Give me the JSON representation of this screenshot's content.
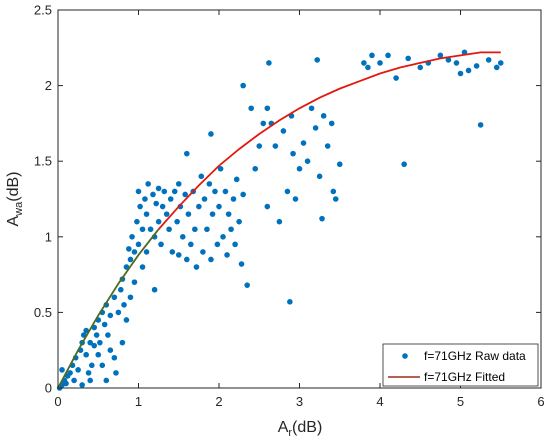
{
  "chart_data": {
    "type": "scatter",
    "title": "",
    "xlabel": {
      "main": "A",
      "sub": "r",
      "unit": "(dB)"
    },
    "ylabel": {
      "main": "A",
      "sub": "wa",
      "unit": "(dB)"
    },
    "xlim": [
      0,
      6
    ],
    "ylim": [
      0,
      2.5
    ],
    "xticks": [
      "0",
      "1",
      "2",
      "3",
      "4",
      "5",
      "6"
    ],
    "yticks": [
      "0",
      "0.5",
      "1",
      "1.5",
      "2",
      "2.5"
    ],
    "grid": false,
    "legend_position": "bottom-right",
    "colors": {
      "raw": "#0072BD",
      "fit": "#E3170D",
      "fit_start": "#4D6B1F"
    },
    "series": [
      {
        "name": "f=71GHz Raw data",
        "kind": "scatter",
        "points": [
          [
            0.02,
            0.0
          ],
          [
            0.05,
            0.02
          ],
          [
            0.08,
            0.05
          ],
          [
            0.1,
            0.03
          ],
          [
            0.12,
            0.08
          ],
          [
            0.15,
            0.1
          ],
          [
            0.05,
            0.12
          ],
          [
            0.18,
            0.15
          ],
          [
            0.2,
            0.05
          ],
          [
            0.22,
            0.2
          ],
          [
            0.25,
            0.12
          ],
          [
            0.28,
            0.25
          ],
          [
            0.3,
            0.3
          ],
          [
            0.3,
            0.02
          ],
          [
            0.32,
            0.35
          ],
          [
            0.35,
            0.22
          ],
          [
            0.35,
            0.38
          ],
          [
            0.38,
            0.1
          ],
          [
            0.4,
            0.05
          ],
          [
            0.4,
            0.3
          ],
          [
            0.42,
            0.15
          ],
          [
            0.45,
            0.28
          ],
          [
            0.45,
            0.4
          ],
          [
            0.48,
            0.35
          ],
          [
            0.5,
            0.45
          ],
          [
            0.5,
            0.22
          ],
          [
            0.52,
            0.3
          ],
          [
            0.55,
            0.5
          ],
          [
            0.55,
            0.15
          ],
          [
            0.58,
            0.42
          ],
          [
            0.6,
            0.55
          ],
          [
            0.6,
            0.05
          ],
          [
            0.62,
            0.35
          ],
          [
            0.65,
            0.48
          ],
          [
            0.65,
            0.25
          ],
          [
            0.7,
            0.6
          ],
          [
            0.7,
            0.2
          ],
          [
            0.72,
            0.1
          ],
          [
            0.75,
            0.5
          ],
          [
            0.78,
            0.65
          ],
          [
            0.8,
            0.3
          ],
          [
            0.8,
            0.72
          ],
          [
            0.82,
            0.55
          ],
          [
            0.85,
            0.8
          ],
          [
            0.85,
            0.45
          ],
          [
            0.88,
            0.92
          ],
          [
            0.9,
            0.85
          ],
          [
            0.9,
            0.6
          ],
          [
            0.92,
            1.0
          ],
          [
            0.95,
            0.9
          ],
          [
            0.95,
            0.7
          ],
          [
            0.98,
            1.1
          ],
          [
            1.0,
            1.3
          ],
          [
            1.0,
            0.95
          ],
          [
            1.02,
            1.2
          ],
          [
            1.05,
            1.05
          ],
          [
            1.05,
            0.8
          ],
          [
            1.08,
            1.25
          ],
          [
            1.1,
            1.15
          ],
          [
            1.1,
            0.9
          ],
          [
            1.12,
            1.35
          ],
          [
            1.15,
            1.05
          ],
          [
            1.18,
            1.28
          ],
          [
            1.2,
            1.0
          ],
          [
            1.2,
            0.65
          ],
          [
            1.22,
            1.22
          ],
          [
            1.25,
            1.32
          ],
          [
            1.25,
            1.1
          ],
          [
            1.28,
            0.95
          ],
          [
            1.3,
            1.2
          ],
          [
            1.32,
            1.3
          ],
          [
            1.35,
            1.15
          ],
          [
            1.38,
            1.05
          ],
          [
            1.4,
            1.25
          ],
          [
            1.42,
            0.9
          ],
          [
            1.45,
            1.3
          ],
          [
            1.48,
            1.1
          ],
          [
            1.5,
            1.35
          ],
          [
            1.5,
            0.88
          ],
          [
            1.52,
            1.2
          ],
          [
            1.55,
            1.0
          ],
          [
            1.58,
            1.28
          ],
          [
            1.6,
            0.85
          ],
          [
            1.6,
            1.55
          ],
          [
            1.62,
            1.15
          ],
          [
            1.65,
            0.95
          ],
          [
            1.68,
            1.3
          ],
          [
            1.7,
            1.05
          ],
          [
            1.72,
            0.8
          ],
          [
            1.75,
            1.2
          ],
          [
            1.78,
            1.4
          ],
          [
            1.8,
            0.9
          ],
          [
            1.82,
            1.25
          ],
          [
            1.85,
            1.05
          ],
          [
            1.88,
            1.35
          ],
          [
            1.9,
            0.85
          ],
          [
            1.9,
            1.68
          ],
          [
            1.92,
            1.15
          ],
          [
            1.95,
            1.3
          ],
          [
            1.98,
            0.95
          ],
          [
            2.0,
            1.2
          ],
          [
            2.02,
            1.45
          ],
          [
            2.05,
            1.0
          ],
          [
            2.08,
            1.3
          ],
          [
            2.1,
            0.88
          ],
          [
            2.12,
            1.15
          ],
          [
            2.15,
            1.05
          ],
          [
            2.18,
            1.25
          ],
          [
            2.2,
            0.95
          ],
          [
            2.22,
            1.38
          ],
          [
            2.25,
            1.1
          ],
          [
            2.28,
            0.82
          ],
          [
            2.3,
            2.0
          ],
          [
            2.3,
            1.28
          ],
          [
            2.35,
            0.68
          ],
          [
            2.4,
            1.85
          ],
          [
            2.45,
            1.45
          ],
          [
            2.5,
            1.6
          ],
          [
            2.55,
            1.75
          ],
          [
            2.6,
            1.85
          ],
          [
            2.6,
            1.2
          ],
          [
            2.62,
            2.15
          ],
          [
            2.65,
            1.75
          ],
          [
            2.7,
            1.6
          ],
          [
            2.75,
            1.1
          ],
          [
            2.8,
            1.7
          ],
          [
            2.85,
            1.3
          ],
          [
            2.88,
            0.57
          ],
          [
            2.9,
            1.8
          ],
          [
            2.92,
            1.55
          ],
          [
            2.95,
            1.25
          ],
          [
            3.0,
            1.45
          ],
          [
            3.05,
            1.62
          ],
          [
            3.1,
            1.5
          ],
          [
            3.15,
            1.85
          ],
          [
            3.2,
            1.72
          ],
          [
            3.22,
            2.17
          ],
          [
            3.25,
            1.4
          ],
          [
            3.28,
            1.12
          ],
          [
            3.3,
            1.8
          ],
          [
            3.35,
            1.6
          ],
          [
            3.4,
            1.75
          ],
          [
            3.42,
            1.3
          ],
          [
            3.45,
            1.25
          ],
          [
            3.5,
            1.48
          ],
          [
            3.8,
            2.15
          ],
          [
            3.85,
            2.12
          ],
          [
            3.9,
            2.2
          ],
          [
            4.0,
            2.15
          ],
          [
            4.1,
            2.2
          ],
          [
            4.2,
            2.05
          ],
          [
            4.3,
            1.48
          ],
          [
            4.35,
            2.18
          ],
          [
            4.5,
            2.12
          ],
          [
            4.6,
            2.15
          ],
          [
            4.75,
            2.2
          ],
          [
            4.85,
            2.17
          ],
          [
            4.95,
            2.15
          ],
          [
            5.0,
            2.08
          ],
          [
            5.05,
            2.22
          ],
          [
            5.1,
            2.1
          ],
          [
            5.2,
            2.13
          ],
          [
            5.25,
            1.74
          ],
          [
            5.35,
            2.17
          ],
          [
            5.45,
            2.12
          ],
          [
            5.5,
            2.15
          ]
        ]
      },
      {
        "name": "f=71GHz Fitted",
        "kind": "line",
        "points": [
          [
            0,
            0
          ],
          [
            0.25,
            0.25
          ],
          [
            0.5,
            0.48
          ],
          [
            0.75,
            0.69
          ],
          [
            1.0,
            0.88
          ],
          [
            1.25,
            1.05
          ],
          [
            1.5,
            1.2
          ],
          [
            1.75,
            1.34
          ],
          [
            2.0,
            1.47
          ],
          [
            2.25,
            1.58
          ],
          [
            2.5,
            1.68
          ],
          [
            2.75,
            1.77
          ],
          [
            3.0,
            1.85
          ],
          [
            3.25,
            1.92
          ],
          [
            3.5,
            1.98
          ],
          [
            3.75,
            2.03
          ],
          [
            4.0,
            2.08
          ],
          [
            4.25,
            2.12
          ],
          [
            4.5,
            2.15
          ],
          [
            4.75,
            2.18
          ],
          [
            5.0,
            2.2
          ],
          [
            5.25,
            2.22
          ],
          [
            5.5,
            2.22
          ]
        ]
      }
    ]
  }
}
